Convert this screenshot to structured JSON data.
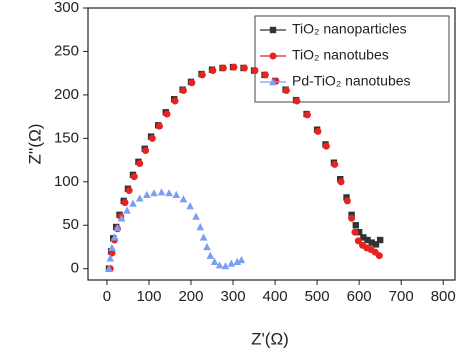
{
  "chart_data": {
    "type": "scatter",
    "x_label": "Z'(Ω)",
    "y_label": "Z''(Ω)",
    "xlim": [
      -45,
      828
    ],
    "ylim": [
      -13,
      300
    ],
    "xticks": [
      0,
      100,
      200,
      300,
      400,
      500,
      600,
      700,
      800
    ],
    "yticks": [
      0,
      50,
      100,
      150,
      200,
      250,
      300
    ],
    "legend": "top-right",
    "series": [
      {
        "name": "TiO₂ nanoparticles",
        "color": "#333333",
        "marker": "square",
        "x": [
          5,
          10,
          15,
          22,
          30,
          40,
          50,
          62,
          75,
          90,
          105,
          122,
          140,
          160,
          180,
          200,
          225,
          250,
          275,
          300,
          325,
          350,
          375,
          400,
          425,
          450,
          475,
          500,
          520,
          540,
          555,
          570,
          582,
          592,
          600,
          610,
          620,
          630,
          640,
          650
        ],
        "values": [
          0,
          20,
          35,
          48,
          62,
          78,
          92,
          108,
          123,
          138,
          152,
          165,
          180,
          195,
          206,
          215,
          224,
          229,
          231,
          232,
          231,
          228,
          223,
          216,
          206,
          194,
          178,
          160,
          143,
          122,
          103,
          82,
          62,
          50,
          42,
          36,
          33,
          30,
          28,
          33
        ]
      },
      {
        "name": "TiO₂ nanotubes",
        "color": "#e8231f",
        "marker": "circle",
        "x": [
          8,
          12,
          18,
          25,
          33,
          43,
          53,
          65,
          78,
          92,
          108,
          125,
          143,
          162,
          182,
          202,
          227,
          252,
          277,
          302,
          327,
          352,
          377,
          402,
          427,
          452,
          477,
          502,
          522,
          542,
          557,
          572,
          582,
          590,
          598,
          608,
          618,
          628,
          638,
          648
        ],
        "values": [
          0,
          18,
          33,
          46,
          60,
          76,
          90,
          106,
          121,
          136,
          150,
          164,
          178,
          193,
          205,
          214,
          223,
          228,
          231,
          232,
          231,
          228,
          223,
          216,
          205,
          193,
          177,
          158,
          141,
          120,
          100,
          78,
          58,
          42,
          32,
          27,
          24,
          22,
          19,
          15
        ]
      },
      {
        "name": "Pd-TiO₂ nanotubes",
        "color": "#7b9ff2",
        "marker": "triangle",
        "x": [
          5,
          8,
          12,
          18,
          25,
          35,
          48,
          62,
          78,
          95,
          112,
          130,
          148,
          165,
          182,
          198,
          212,
          222,
          230,
          238,
          246,
          256,
          268,
          282,
          296,
          310,
          320
        ],
        "values": [
          0,
          12,
          24,
          36,
          47,
          58,
          67,
          75,
          81,
          85,
          87,
          88,
          87,
          85,
          80,
          72,
          60,
          48,
          36,
          25,
          15,
          8,
          4,
          3,
          6,
          8,
          10
        ]
      }
    ]
  }
}
